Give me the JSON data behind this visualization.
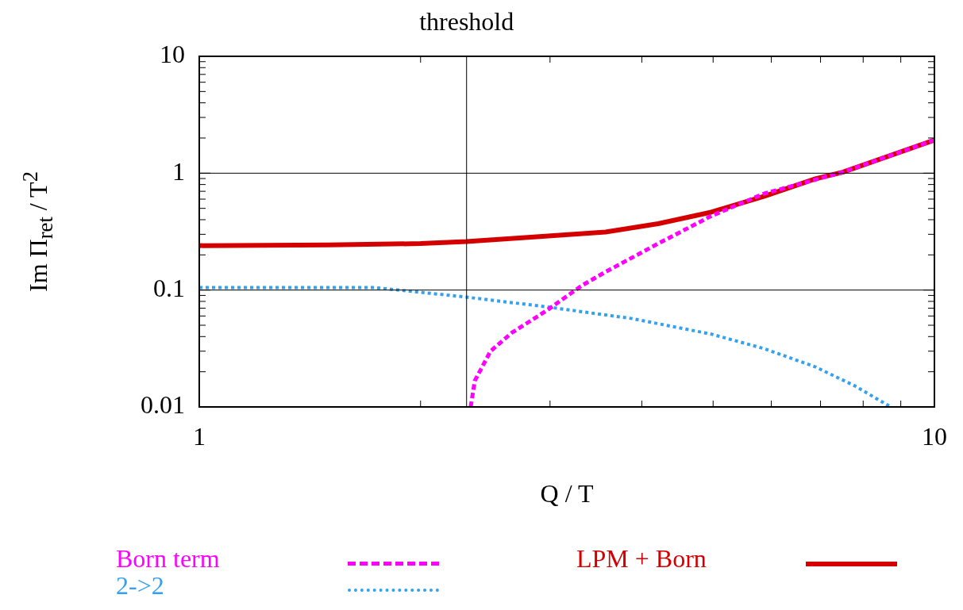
{
  "chart_data": {
    "type": "line",
    "xlabel": "Q / T",
    "ylabel": "Im Π$_{ret}$ / T$^{2}$",
    "log": "xy",
    "grid": "y",
    "legend": "bottom",
    "xlim": [
      1,
      10
    ],
    "ylim": [
      0.01,
      10
    ],
    "xticks": [
      1,
      {
        "value": 2,
        "label": null
      },
      {
        "value": 3,
        "label": null
      },
      {
        "value": 4,
        "label": null
      },
      {
        "value": 5,
        "label": null
      },
      {
        "value": 6,
        "label": null
      },
      {
        "value": 7,
        "label": null
      },
      {
        "value": 8,
        "label": null
      },
      {
        "value": 9,
        "label": null
      },
      10
    ],
    "yticks": [
      0.01,
      {
        "value": 0.02,
        "label": null
      },
      {
        "value": 0.03,
        "label": null
      },
      {
        "value": 0.04,
        "label": null
      },
      {
        "value": 0.05,
        "label": null
      },
      {
        "value": 0.06,
        "label": null
      },
      {
        "value": 0.07,
        "label": null
      },
      {
        "value": 0.08,
        "label": null
      },
      {
        "value": 0.09,
        "label": null
      },
      0.1,
      {
        "value": 0.2,
        "label": null
      },
      {
        "value": 0.3,
        "label": null
      },
      {
        "value": 0.4,
        "label": null
      },
      {
        "value": 0.5,
        "label": null
      },
      {
        "value": 0.6,
        "label": null
      },
      {
        "value": 0.7,
        "label": null
      },
      {
        "value": 0.8,
        "label": null
      },
      {
        "value": 0.9,
        "label": null
      },
      1,
      {
        "value": 2,
        "label": null
      },
      {
        "value": 3,
        "label": null
      },
      {
        "value": 4,
        "label": null
      },
      {
        "value": 5,
        "label": null
      },
      {
        "value": 6,
        "label": null
      },
      {
        "value": 7,
        "label": null
      },
      {
        "value": 8,
        "label": null
      },
      {
        "value": 9,
        "label": null
      },
      10
    ],
    "ref_lines": [
      {
        "axis": "x",
        "value": 2.31,
        "label": "threshold",
        "color": "#000000"
      }
    ],
    "series": [
      {
        "name": "Born term",
        "color": "#ff00ff",
        "line_style": "dashed",
        "x": [
          2.34,
          2.37,
          2.49,
          2.66,
          2.96,
          3.32,
          3.57,
          4.21,
          4.97,
          5.87,
          6.89,
          7.5,
          8.83,
          10
        ],
        "values": [
          0.01,
          0.0167,
          0.03,
          0.043,
          0.066,
          0.11,
          0.143,
          0.25,
          0.43,
          0.67,
          0.88,
          1.02,
          1.46,
          1.92
        ]
      },
      {
        "name": "2->2",
        "color": "#33a0f0",
        "line_style": "dotted",
        "x": [
          1,
          1.4,
          1.73,
          1.96,
          2.31,
          2.96,
          3.88,
          4.97,
          5.87,
          6.89,
          7.8,
          8.72
        ],
        "values": [
          0.105,
          0.105,
          0.105,
          0.097,
          0.087,
          0.072,
          0.057,
          0.042,
          0.0315,
          0.022,
          0.0151,
          0.01
        ]
      },
      {
        "name": "LPM + Born",
        "color": "#d40000",
        "line_style": "solid",
        "x": [
          1,
          1.5,
          2,
          2.31,
          2.8,
          3.57,
          4.21,
          4.97,
          5.87,
          6.89,
          7.5,
          8.83,
          10
        ],
        "values": [
          0.24,
          0.243,
          0.25,
          0.26,
          0.282,
          0.314,
          0.37,
          0.464,
          0.635,
          0.896,
          1.02,
          1.46,
          1.92
        ]
      }
    ]
  }
}
